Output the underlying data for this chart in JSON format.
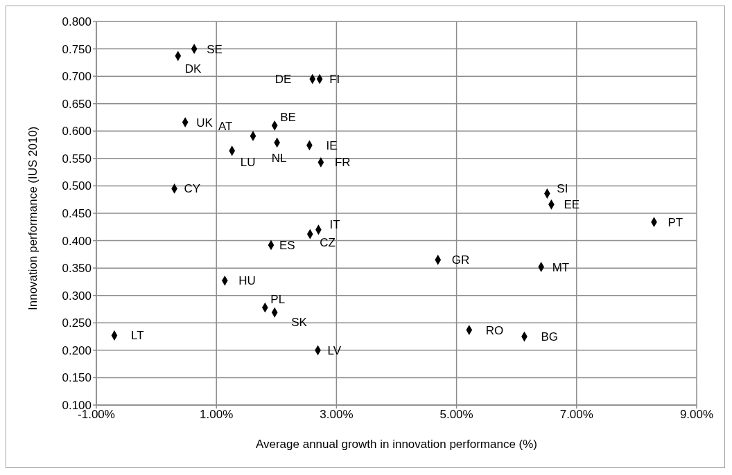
{
  "chart_data": {
    "type": "scatter",
    "xlabel": "Average annual  growth in innovation performance (%)",
    "ylabel": "Innovation performance (IUS 2010)",
    "x": [
      0.63,
      0.36,
      2.6,
      2.72,
      0.48,
      1.97,
      1.61,
      2.01,
      2.55,
      1.26,
      2.74,
      0.3,
      6.51,
      6.58,
      8.29,
      4.69,
      6.41,
      5.21,
      6.13,
      2.7,
      2.56,
      1.91,
      1.14,
      1.81,
      1.97,
      -0.7,
      2.69
    ],
    "series": [
      {
        "color": "#000000",
        "values": [
          0.75,
          0.737,
          0.695,
          0.695,
          0.616,
          0.61,
          0.591,
          0.579,
          0.574,
          0.564,
          0.543,
          0.495,
          0.486,
          0.466,
          0.434,
          0.365,
          0.352,
          0.237,
          0.225,
          0.42,
          0.412,
          0.392,
          0.327,
          0.278,
          0.269,
          0.227,
          0.2
        ]
      }
    ],
    "xlim": [
      -1,
      9
    ],
    "xticks": [
      {
        "value": -1,
        "label": "-1.00%"
      },
      {
        "value": 1,
        "label": "1.00%"
      },
      {
        "value": 3,
        "label": "3.00%"
      },
      {
        "value": 5,
        "label": "5.00%"
      },
      {
        "value": 7,
        "label": "7.00%"
      },
      {
        "value": 9,
        "label": "9.00%"
      }
    ],
    "ylim": [
      0.1,
      0.8
    ],
    "yticks": [
      {
        "value": 0.1,
        "label": "0.100"
      },
      {
        "value": 0.15,
        "label": "0.150"
      },
      {
        "value": 0.2,
        "label": "0.200"
      },
      {
        "value": 0.25,
        "label": "0.250"
      },
      {
        "value": 0.3,
        "label": "0.300"
      },
      {
        "value": 0.35,
        "label": "0.350"
      },
      {
        "value": 0.4,
        "label": "0.400"
      },
      {
        "value": 0.45,
        "label": "0.450"
      },
      {
        "value": 0.5,
        "label": "0.500"
      },
      {
        "value": 0.55,
        "label": "0.550"
      },
      {
        "value": 0.6,
        "label": "0.600"
      },
      {
        "value": 0.65,
        "label": "0.650"
      },
      {
        "value": 0.7,
        "label": "0.700"
      },
      {
        "value": 0.75,
        "label": "0.750"
      },
      {
        "value": 0.8,
        "label": "0.800"
      }
    ],
    "grid": true,
    "marker": "diamond",
    "annotations": [
      {
        "text": "SE",
        "x": 0.63,
        "y": 0.75
      },
      {
        "text": "DK",
        "x": 0.36,
        "y": 0.737
      },
      {
        "text": "DE",
        "x": 2.6,
        "y": 0.695
      },
      {
        "text": "FI",
        "x": 2.72,
        "y": 0.695
      },
      {
        "text": "UK",
        "x": 0.48,
        "y": 0.616
      },
      {
        "text": "BE",
        "x": 1.97,
        "y": 0.61
      },
      {
        "text": "AT",
        "x": 1.61,
        "y": 0.591
      },
      {
        "text": "NL",
        "x": 2.01,
        "y": 0.579
      },
      {
        "text": "IE",
        "x": 2.55,
        "y": 0.574
      },
      {
        "text": "LU",
        "x": 1.26,
        "y": 0.564
      },
      {
        "text": "FR",
        "x": 2.74,
        "y": 0.543
      },
      {
        "text": "CY",
        "x": 0.3,
        "y": 0.495
      },
      {
        "text": "SI",
        "x": 6.51,
        "y": 0.486
      },
      {
        "text": "EE",
        "x": 6.58,
        "y": 0.466
      },
      {
        "text": "PT",
        "x": 8.29,
        "y": 0.434
      },
      {
        "text": "GR",
        "x": 4.69,
        "y": 0.365
      },
      {
        "text": "MT",
        "x": 6.41,
        "y": 0.352
      },
      {
        "text": "RO",
        "x": 5.21,
        "y": 0.237
      },
      {
        "text": "BG",
        "x": 6.13,
        "y": 0.225
      },
      {
        "text": "IT",
        "x": 2.7,
        "y": 0.42
      },
      {
        "text": "CZ",
        "x": 2.56,
        "y": 0.412
      },
      {
        "text": "ES",
        "x": 1.91,
        "y": 0.392
      },
      {
        "text": "HU",
        "x": 1.14,
        "y": 0.327
      },
      {
        "text": "PL",
        "x": 1.81,
        "y": 0.278
      },
      {
        "text": "SK",
        "x": 1.97,
        "y": 0.269
      },
      {
        "text": "LT",
        "x": -0.7,
        "y": 0.227
      },
      {
        "text": "LV",
        "x": 2.69,
        "y": 0.2
      }
    ]
  }
}
